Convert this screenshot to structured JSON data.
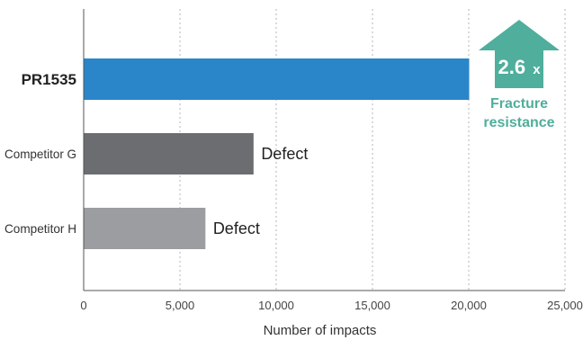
{
  "chart_data": {
    "type": "bar",
    "orientation": "horizontal",
    "categories": [
      "PR1535",
      "Competitor G",
      "Competitor H"
    ],
    "values": [
      20000,
      8800,
      6300
    ],
    "bar_colors": [
      "#2b85c9",
      "#6b6d70",
      "#9c9da0"
    ],
    "data_labels": [
      "",
      "Defect",
      "Defect"
    ],
    "xlabel": "Number of impacts",
    "xlim": [
      0,
      25000
    ],
    "x_ticks": [
      0,
      5000,
      10000,
      15000,
      20000,
      25000
    ],
    "x_tick_labels": [
      "0",
      "5,000",
      "10,000",
      "15,000",
      "20,000",
      "25,000"
    ],
    "grid": "vertical dotted",
    "callout": {
      "value": "2.6",
      "unit": "x",
      "line1": "Fracture",
      "line2": "resistance",
      "color": "#4fae9c",
      "icon": "up-arrow-icon"
    }
  }
}
